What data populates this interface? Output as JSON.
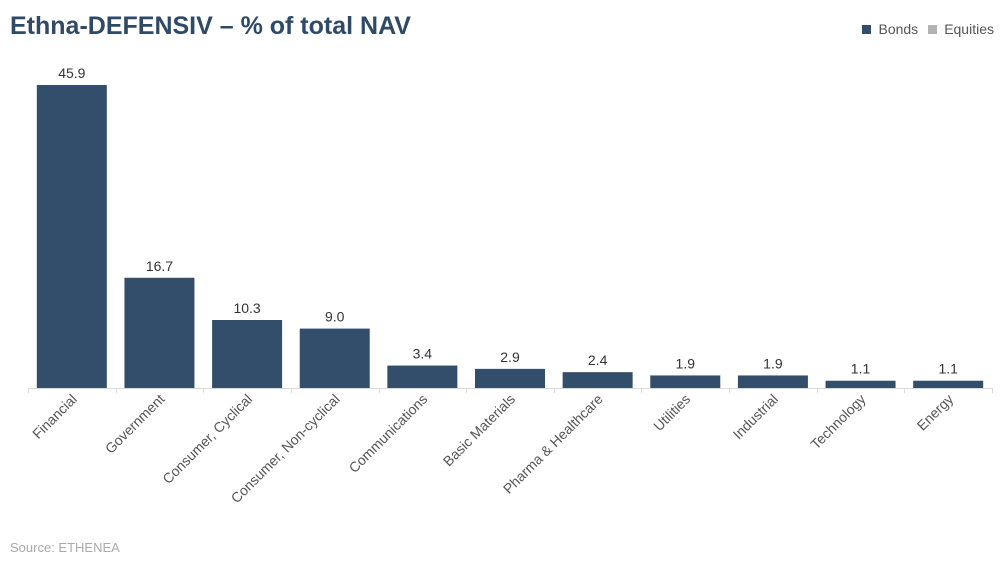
{
  "chart_data": {
    "type": "bar",
    "title": "Ethna-DEFENSIV – % of total NAV",
    "categories": [
      "Financial",
      "Government",
      "Consumer, Cyclical",
      "Consumer, Non-cyclical",
      "Communications",
      "Basic Materials",
      "Pharma & Healthcare",
      "Utilities",
      "Industrial",
      "Technology",
      "Energy"
    ],
    "series": [
      {
        "name": "Bonds",
        "color": "#334e6b",
        "values": [
          45.9,
          16.7,
          10.3,
          9.0,
          3.4,
          2.9,
          2.4,
          1.9,
          1.9,
          1.1,
          1.1
        ]
      },
      {
        "name": "Equities",
        "color": "#b3b3b3",
        "values": [
          0,
          0,
          0,
          0,
          0,
          0,
          0,
          0,
          0,
          0,
          0
        ]
      }
    ],
    "data_labels": [
      "45.9",
      "16.7",
      "10.3",
      "9.0",
      "3.4",
      "2.9",
      "2.4",
      "1.9",
      "1.9",
      "1.1",
      "1.1"
    ],
    "xlabel": "",
    "ylabel": "",
    "ylim": [
      0,
      50
    ],
    "grid": false,
    "legend": "top-right"
  },
  "source": "Source: ETHENEA"
}
